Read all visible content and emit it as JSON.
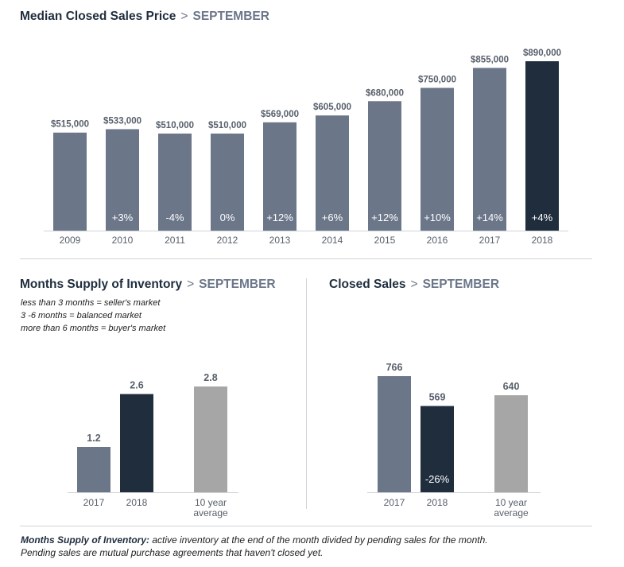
{
  "top_title": {
    "main": "Median Closed Sales Price",
    "sep": ">",
    "month": "SEPTEMBER"
  },
  "left_title": {
    "main": "Months Supply of Inventory",
    "sep": ">",
    "month": "SEPTEMBER"
  },
  "right_title": {
    "main": "Closed Sales",
    "sep": ">",
    "month": "SEPTEMBER"
  },
  "inventory_notes": [
    "less than 3 months = seller's market",
    "3 -6 months = balanced market",
    "more than 6 months = buyer's market"
  ],
  "footnote": {
    "term": "Months Supply of Inventory:",
    "text": " active inventory at the end of the month divided by pending sales for the month. Pending sales are mutual purchase agreements that haven't closed yet."
  },
  "colors": {
    "past": "#6b7689",
    "current": "#1f2d3d",
    "average": "#a6a6a6",
    "axis": "#cfd3d8",
    "label": "#58606b"
  },
  "chart_data": [
    {
      "id": "median-price",
      "type": "bar",
      "title": "Median Closed Sales Price > SEPTEMBER",
      "categories": [
        "2009",
        "2010",
        "2011",
        "2012",
        "2013",
        "2014",
        "2015",
        "2016",
        "2017",
        "2018"
      ],
      "values": [
        515000,
        533000,
        510000,
        510000,
        569000,
        605000,
        680000,
        750000,
        855000,
        890000
      ],
      "value_labels": [
        "$515,000",
        "$533,000",
        "$510,000",
        "$510,000",
        "$569,000",
        "$605,000",
        "$680,000",
        "$750,000",
        "$855,000",
        "$890,000"
      ],
      "change_labels": [
        "",
        "+3%",
        "-4%",
        "0%",
        "+12%",
        "+6%",
        "+12%",
        "+10%",
        "+14%",
        "+4%"
      ],
      "highlight_index": 9,
      "ylim": [
        0,
        890000
      ]
    },
    {
      "id": "months-supply",
      "type": "bar",
      "title": "Months Supply of Inventory > SEPTEMBER",
      "categories": [
        "2017",
        "2018",
        "10 year average"
      ],
      "values": [
        1.2,
        2.6,
        2.8
      ],
      "value_labels": [
        "1.2",
        "2.6",
        "2.8"
      ],
      "change_labels": [
        "",
        "",
        ""
      ],
      "ylim": [
        0,
        2.8
      ]
    },
    {
      "id": "closed-sales",
      "type": "bar",
      "title": "Closed Sales > SEPTEMBER",
      "categories": [
        "2017",
        "2018",
        "10 year average"
      ],
      "values": [
        766,
        569,
        640
      ],
      "value_labels": [
        "766",
        "569",
        "640"
      ],
      "change_labels": [
        "",
        "-26%",
        ""
      ],
      "ylim": [
        0,
        766
      ]
    }
  ]
}
